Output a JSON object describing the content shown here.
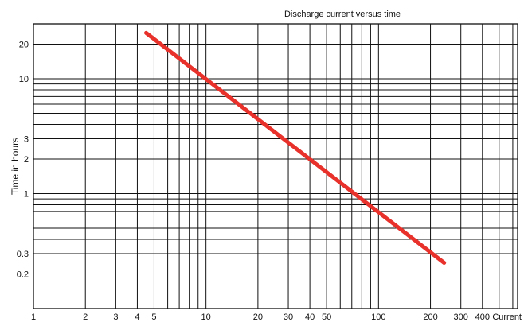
{
  "chart_data": {
    "type": "line",
    "title": "Discharge current versus time",
    "xlabel": "Current",
    "ylabel": "Time in hours",
    "x_scale": "log",
    "y_scale": "log",
    "xlim": [
      1,
      640
    ],
    "ylim": [
      0.1,
      30
    ],
    "x_tick_labels": [
      {
        "value": 1,
        "label": "1"
      },
      {
        "value": 2,
        "label": "2"
      },
      {
        "value": 3,
        "label": "3"
      },
      {
        "value": 4,
        "label": "4"
      },
      {
        "value": 5,
        "label": "5"
      },
      {
        "value": 10,
        "label": "10"
      },
      {
        "value": 20,
        "label": "20"
      },
      {
        "value": 30,
        "label": "30"
      },
      {
        "value": 40,
        "label": "40"
      },
      {
        "value": 50,
        "label": "50"
      },
      {
        "value": 100,
        "label": "100"
      },
      {
        "value": 200,
        "label": "200"
      },
      {
        "value": 300,
        "label": "300"
      },
      {
        "value": 400,
        "label": "400"
      }
    ],
    "y_tick_labels": [
      {
        "value": 20,
        "label": "20"
      },
      {
        "value": 10,
        "label": "10"
      },
      {
        "value": 3,
        "label": "3"
      },
      {
        "value": 2,
        "label": "2"
      },
      {
        "value": 1,
        "label": "1"
      },
      {
        "value": 0.3,
        "label": "0.3"
      },
      {
        "value": 0.2,
        "label": "0.2"
      }
    ],
    "x_gridlines": [
      2,
      3,
      4,
      5,
      6,
      7,
      8,
      9,
      10,
      20,
      30,
      40,
      50,
      60,
      70,
      80,
      90,
      100,
      200,
      300,
      400,
      500,
      600
    ],
    "y_gridlines": [
      0.2,
      0.3,
      0.4,
      0.5,
      0.6,
      0.7,
      0.8,
      0.9,
      1,
      2,
      3,
      4,
      5,
      6,
      7,
      8,
      9,
      10,
      20
    ],
    "grid": true,
    "series": [
      {
        "color": "#e8312a",
        "x": [
          4.5,
          240
        ],
        "y": [
          25,
          0.25
        ]
      }
    ]
  }
}
